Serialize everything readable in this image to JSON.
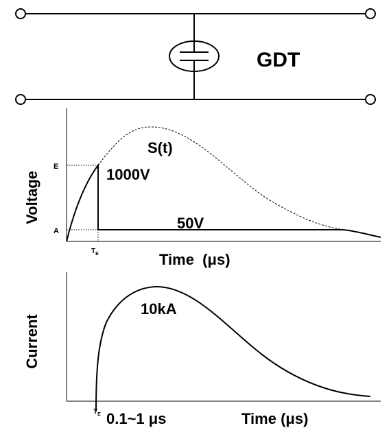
{
  "circuit": {
    "label": "GDT"
  },
  "voltage_plot": {
    "y_label": "Voltage",
    "x_label": "Time  (μs)",
    "curve_label": "S(t)",
    "level_high": "E",
    "level_low": "A",
    "high_label": "1000V",
    "low_label": "50V",
    "time_marker": {
      "main": "T",
      "sub": "E"
    }
  },
  "current_plot": {
    "y_label": "Current",
    "x_label": "Time (μs)",
    "peak_label": "10kA",
    "time_marker": {
      "main": "T",
      "sub": "E"
    },
    "duration": "0.1~1 μs"
  }
}
